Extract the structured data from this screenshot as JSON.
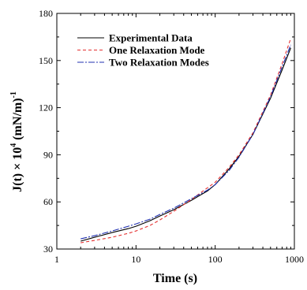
{
  "chart_data": {
    "type": "line",
    "xscale": "log",
    "xlabel": "Time (s)",
    "ylabel_parts": {
      "pre": "J(t) × 10",
      "sup1": "4",
      "mid": " (mN/m)",
      "sup2": "-1"
    },
    "xlim": [
      1,
      1000
    ],
    "ylim": [
      30,
      180
    ],
    "xticks": [
      1,
      10,
      100,
      1000
    ],
    "xtick_labels": [
      "1",
      "10",
      "100",
      "1000"
    ],
    "yticks": [
      30,
      60,
      90,
      120,
      150,
      180
    ],
    "ytick_labels": [
      "30",
      "60",
      "90",
      "120",
      "150",
      "180"
    ],
    "legend_position": "top-left",
    "grid": false,
    "series": [
      {
        "name": "Experimental Data",
        "color": "#000000",
        "dash": "solid",
        "x": [
          2,
          3,
          5,
          8,
          10,
          15,
          20,
          30,
          50,
          80,
          100,
          150,
          200,
          300,
          500,
          700,
          900
        ],
        "y": [
          35,
          37.5,
          40.5,
          43,
          44.5,
          48,
          51,
          55,
          61,
          67,
          71,
          81,
          89,
          103,
          126,
          144,
          158
        ]
      },
      {
        "name": "One Relaxation Mode",
        "color": "#e53030",
        "dash": "4,3",
        "x": [
          2,
          3,
          5,
          8,
          10,
          15,
          20,
          30,
          50,
          80,
          100,
          150,
          200,
          300,
          500,
          700,
          900
        ],
        "y": [
          34,
          35.5,
          37.5,
          40,
          41.5,
          45,
          48.5,
          54,
          61.5,
          69,
          72.5,
          82,
          90,
          104,
          128,
          148,
          164
        ]
      },
      {
        "name": "Two Relaxation Modes",
        "color": "#2030b0",
        "dash": "8,2,2,2",
        "x": [
          2,
          3,
          5,
          8,
          10,
          15,
          20,
          30,
          50,
          80,
          100,
          150,
          200,
          300,
          500,
          700,
          900
        ],
        "y": [
          36.5,
          38.5,
          41.5,
          44.5,
          46,
          49,
          52,
          56,
          62,
          67.5,
          71,
          80,
          88.5,
          103,
          127,
          146,
          160
        ]
      }
    ]
  }
}
